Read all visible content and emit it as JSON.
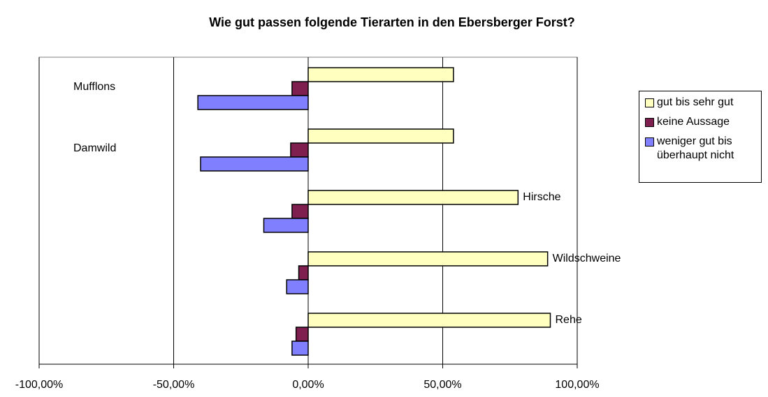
{
  "chart_data": {
    "type": "barh",
    "title": "Wie gut passen folgende Tierarten in den Ebersberger Forst?",
    "categories": [
      "Mufflons",
      "Damwild",
      "Hirsche",
      "Wildschweine",
      "Rehe"
    ],
    "series": [
      {
        "name": "gut bis sehr gut",
        "color": "#ffffc0",
        "values": [
          54,
          54,
          78,
          89,
          90
        ]
      },
      {
        "name": "keine Aussage",
        "color": "#7f1f4f",
        "values": [
          -6,
          -6.5,
          -6,
          -3.5,
          -4.5
        ]
      },
      {
        "name": "weniger gut bis überhaupt nicht",
        "color": "#8080ff",
        "values": [
          -41,
          -40,
          -16.5,
          -8,
          -6
        ]
      }
    ],
    "xlim": [
      -100,
      100
    ],
    "xticks": [
      {
        "value": -100,
        "label": "-100,00%"
      },
      {
        "value": -50,
        "label": "-50,00%"
      },
      {
        "value": 0,
        "label": "0,00%"
      },
      {
        "value": 50,
        "label": "50,00%"
      },
      {
        "value": 100,
        "label": "100,00%"
      }
    ],
    "grid": true,
    "legend": "right"
  }
}
